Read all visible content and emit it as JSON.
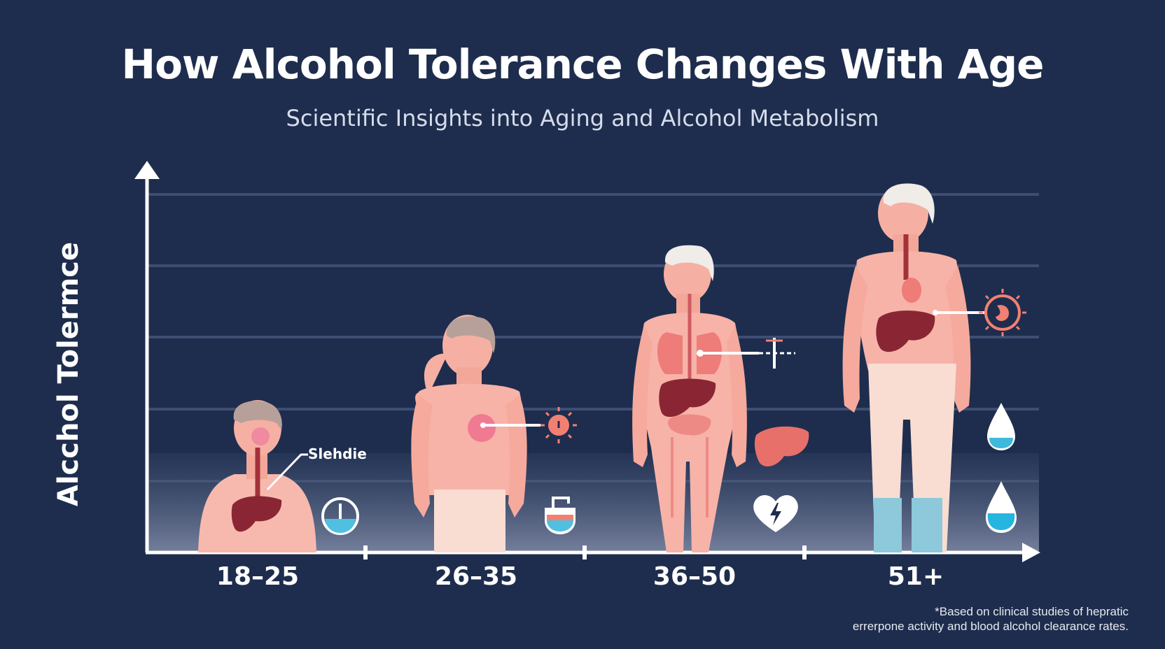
{
  "title": "How Alcohol Tolerance Changes With Age",
  "subtitle": "Scientific Insights into Aging and Alcohol Metabolism",
  "y_axis_label": "Alcchol Tolermce",
  "callout_label": "Slehdie",
  "age_groups": [
    {
      "label": "18–25",
      "icons": [
        "beaker-icon"
      ]
    },
    {
      "label": "26–35",
      "icons": [
        "sun-icon",
        "beaker-icon"
      ]
    },
    {
      "label": "36–50",
      "icons": [
        "crosshair-icon",
        "liver-icon",
        "heart-lightning-icon"
      ]
    },
    {
      "label": "51+",
      "icons": [
        "sun-stomach-icon",
        "droplet-icon",
        "droplet-icon"
      ]
    }
  ],
  "footnote": {
    "line1": "*Based on clinical studies of hepratic",
    "line2": "errerpone activity and blood alcohol clearance rates."
  },
  "colors": {
    "background": "#1e2d4d",
    "skin": "#f7b3a8",
    "organ": "#8a2633",
    "accent": "#f28072",
    "water": "#4fc0e0"
  }
}
